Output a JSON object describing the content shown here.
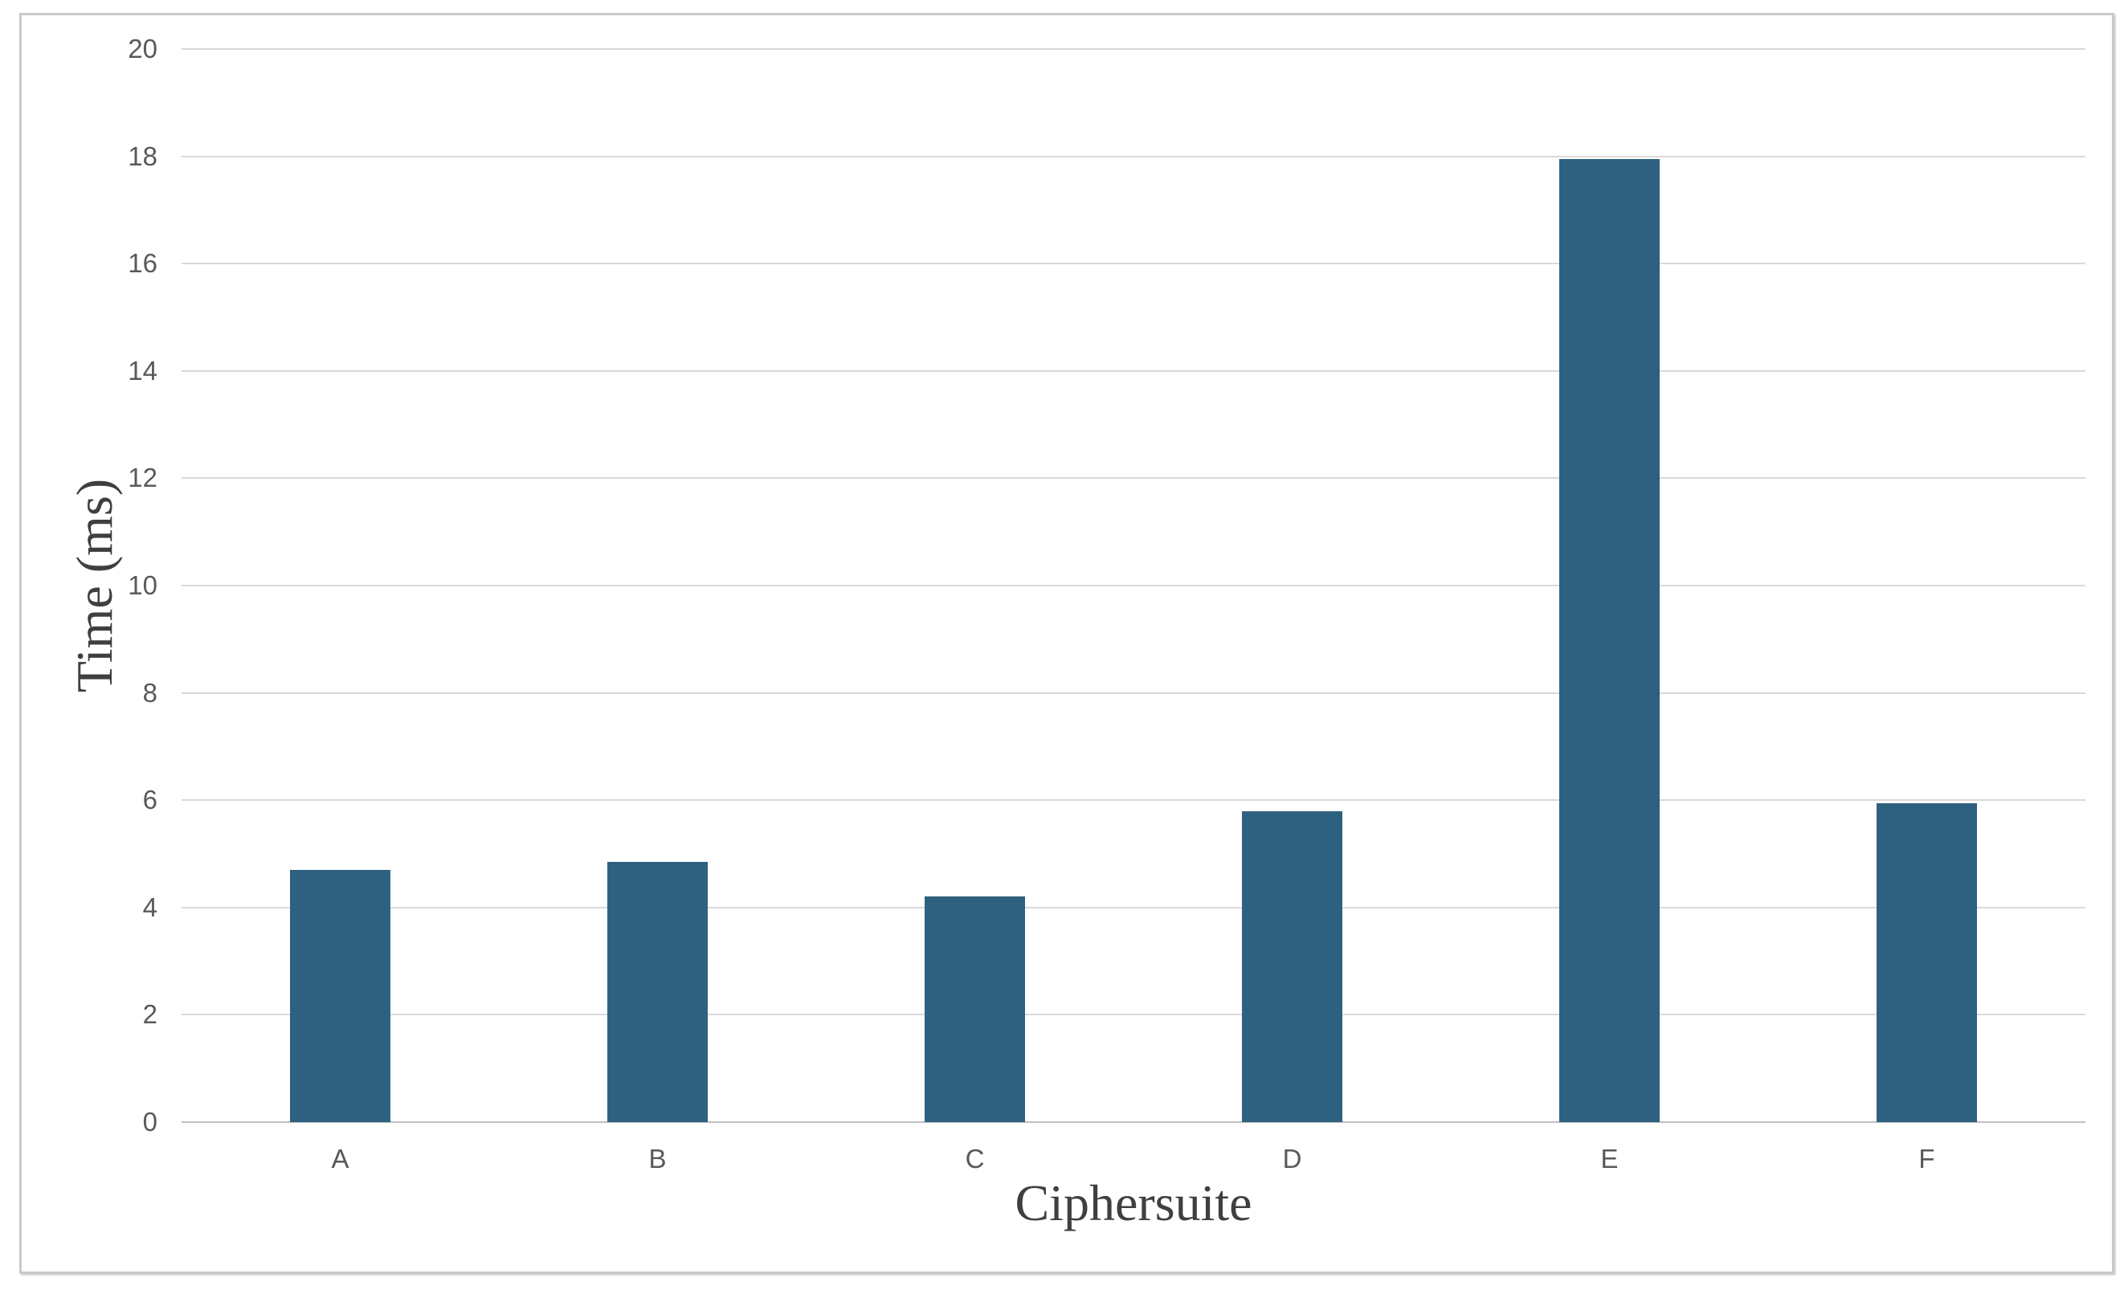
{
  "chart_data": {
    "type": "bar",
    "title": "",
    "xlabel": "Ciphersuite",
    "ylabel": "Time (ms)",
    "categories": [
      "A",
      "B",
      "C",
      "D",
      "E",
      "F"
    ],
    "values": [
      4.7,
      4.85,
      4.2,
      5.8,
      17.95,
      5.95
    ],
    "series_name": "Time (ms)",
    "ylim": [
      0,
      20
    ],
    "ytick_step": 2,
    "yticks": [
      0,
      2,
      4,
      6,
      8,
      10,
      12,
      14,
      16,
      18,
      20
    ],
    "grid": "horizontal",
    "legend": "none",
    "bar_color": "#2e6180",
    "gridline_color": "#d9d9d9",
    "axis_line_color": "#bfbfbf",
    "tick_label_color": "#595959",
    "axis_title_color": "#3f3f3f",
    "frame_border_color": "#c9c9c9"
  }
}
